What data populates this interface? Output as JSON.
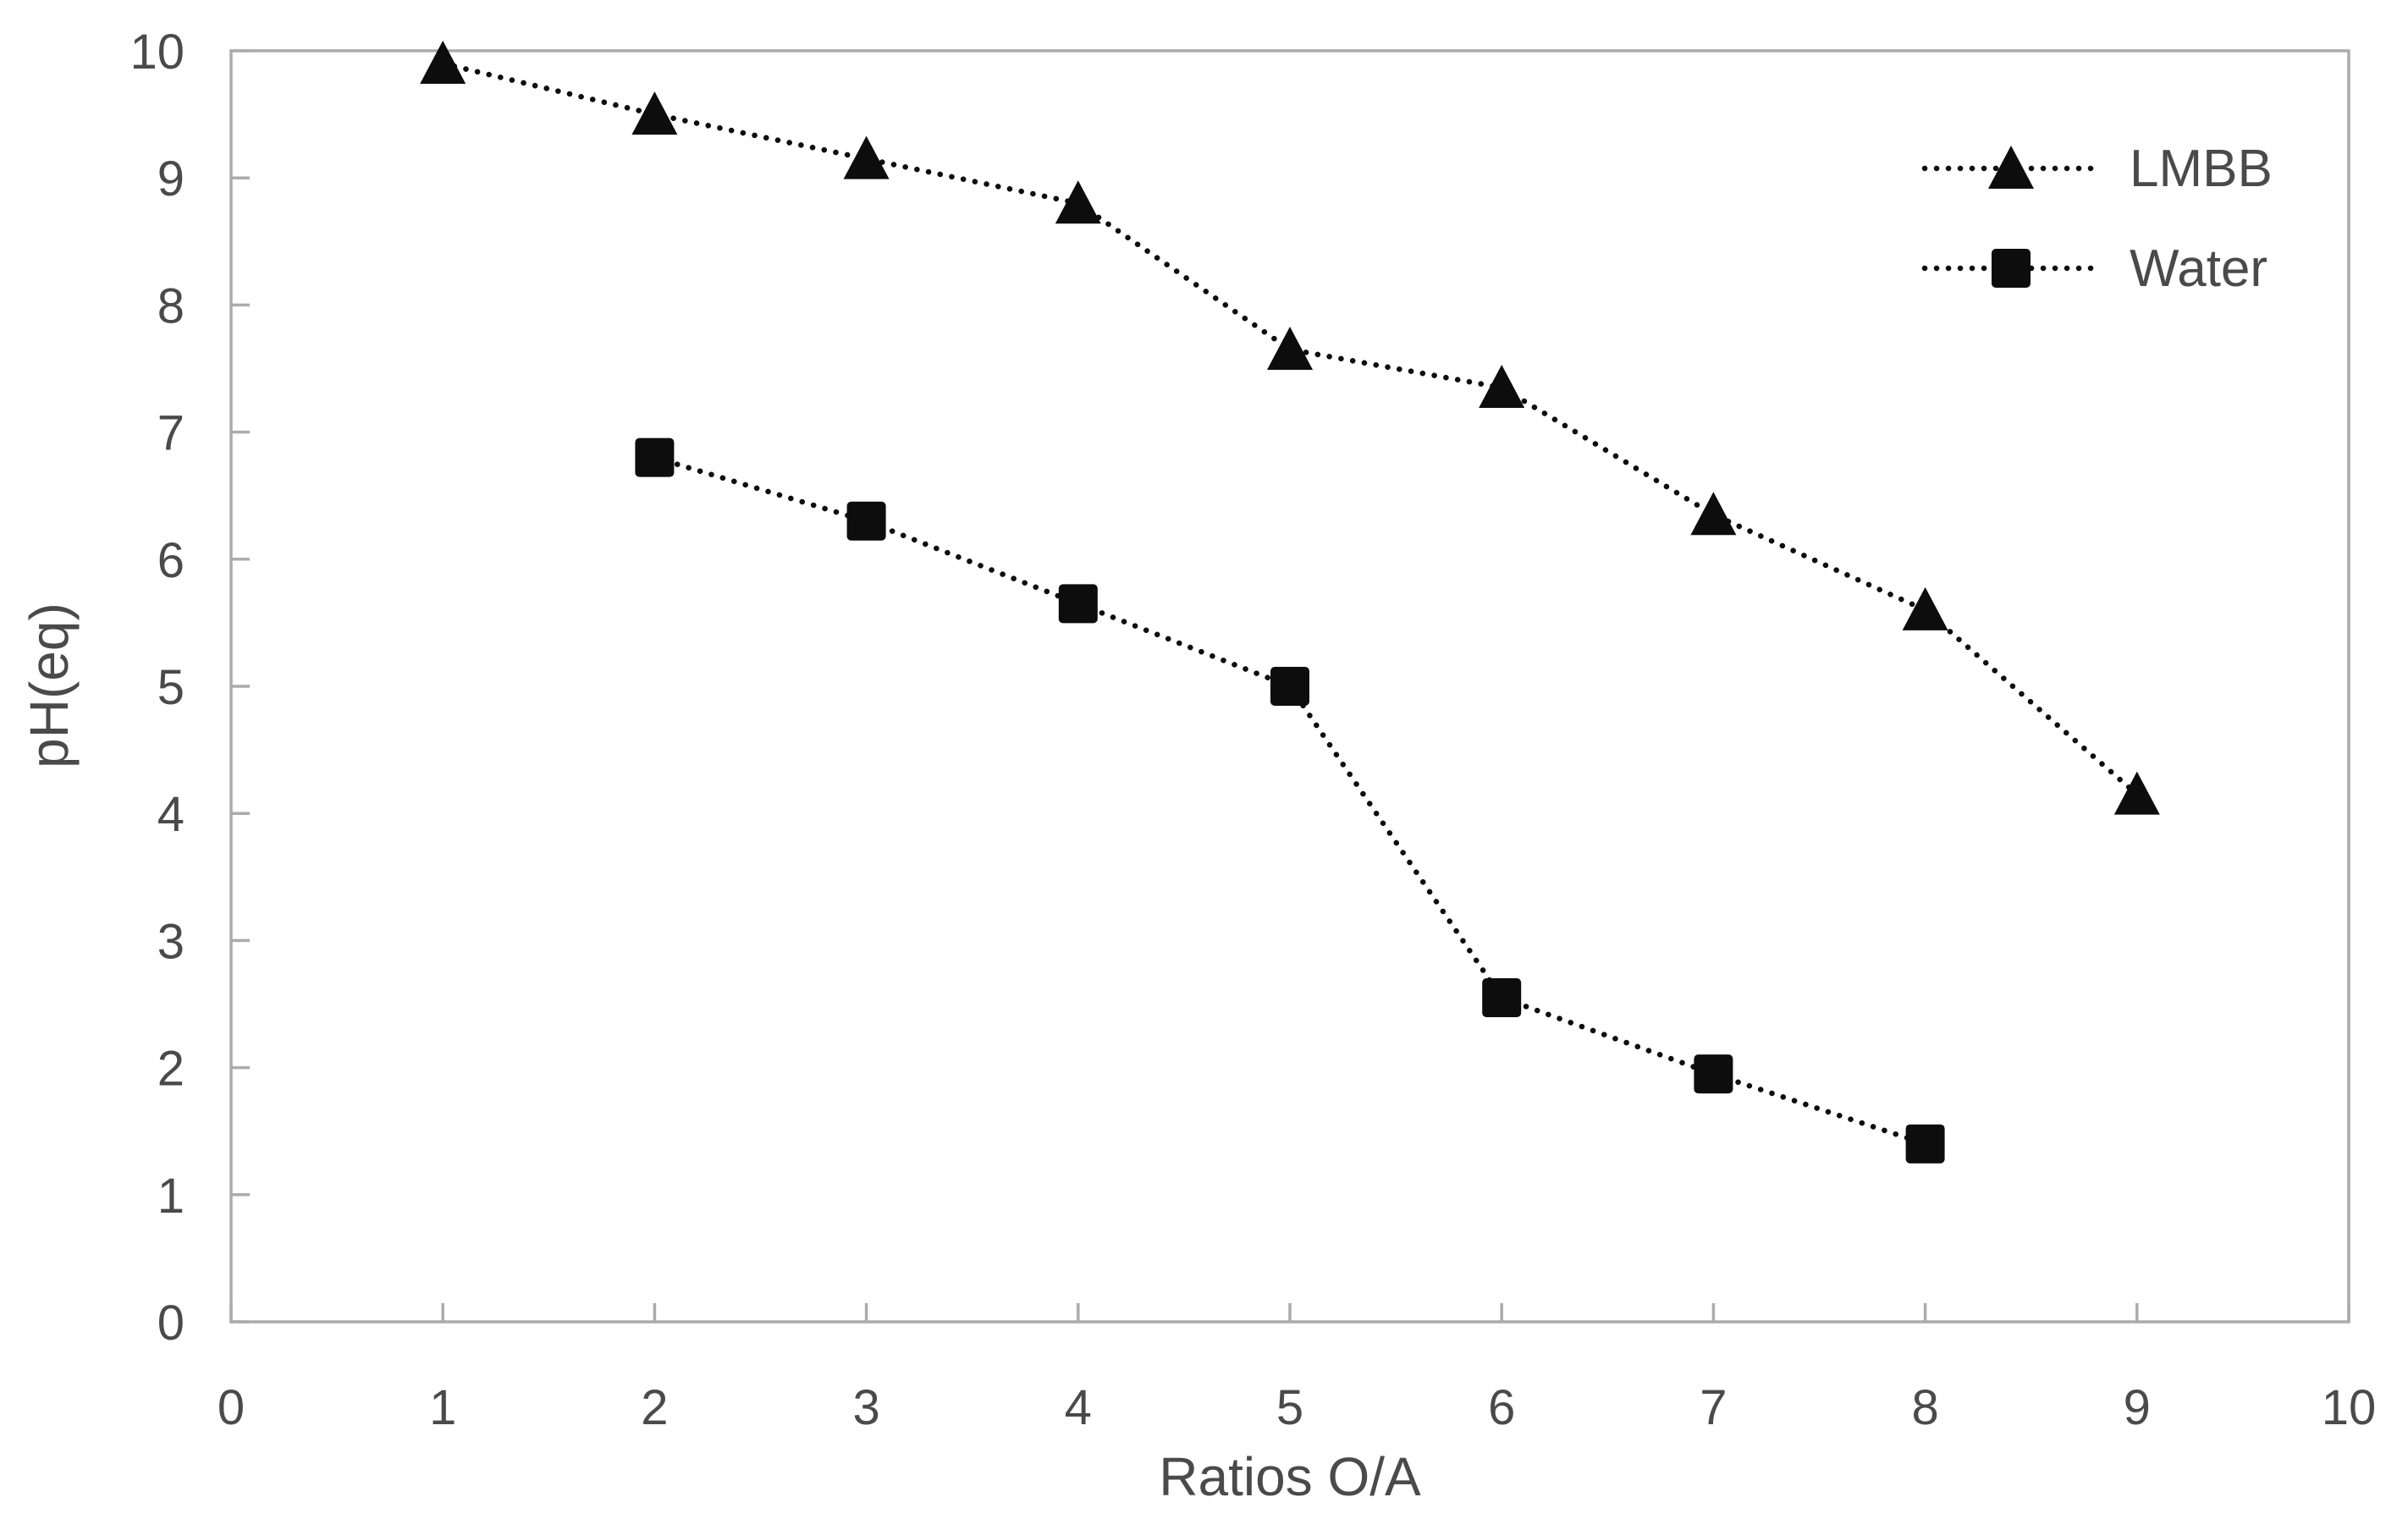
{
  "chart_data": {
    "type": "line",
    "title": "",
    "xlabel": "Ratios O/A",
    "ylabel": "pH(eq)",
    "xlim": [
      0,
      10
    ],
    "ylim": [
      0,
      10
    ],
    "x_ticks": [
      0,
      1,
      2,
      3,
      4,
      5,
      6,
      7,
      8,
      9,
      10
    ],
    "y_ticks": [
      0,
      1,
      2,
      3,
      4,
      5,
      6,
      7,
      8,
      9,
      10
    ],
    "grid": false,
    "line_style": "dotted",
    "legend_position": "top-right-inside",
    "series": [
      {
        "name": "LMBB",
        "marker": "triangle",
        "points": [
          [
            1,
            9.9
          ],
          [
            2,
            9.5
          ],
          [
            3,
            9.15
          ],
          [
            4,
            8.8
          ],
          [
            5,
            7.65
          ],
          [
            6,
            7.35
          ],
          [
            7,
            6.35
          ],
          [
            8,
            5.6
          ],
          [
            9,
            4.15
          ]
        ]
      },
      {
        "name": "Water",
        "marker": "square",
        "points": [
          [
            2,
            6.8
          ],
          [
            3,
            6.3
          ],
          [
            4,
            5.65
          ],
          [
            5,
            5.0
          ],
          [
            6,
            2.55
          ],
          [
            7,
            1.95
          ],
          [
            8,
            1.4
          ]
        ]
      }
    ],
    "colors": {
      "frame": "#ababab",
      "tick": "#ababab",
      "tick_label": "#4a4a4a",
      "axis_title": "#4a4a4a",
      "series": "#0d0d0d",
      "background": "#ffffff"
    }
  }
}
